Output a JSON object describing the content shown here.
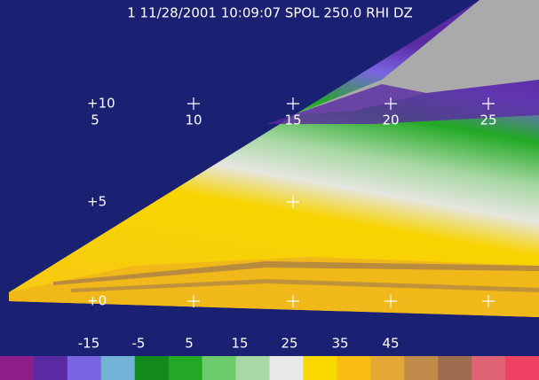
{
  "title": "1 11/28/2001 10:09:07 SPOL 250.0 RHI DZ",
  "range_labels": [
    "5",
    "10",
    "15",
    "20",
    "25"
  ],
  "height_labels": [
    "+10",
    "+5",
    "+0"
  ],
  "colorbar": {
    "labels": [
      "-15",
      "-5",
      "5",
      "15",
      "25",
      "35",
      "45"
    ],
    "colors": [
      "#8e1d8c",
      "#5a2aa2",
      "#7a64e2",
      "#72b2d6",
      "#12891a",
      "#22a824",
      "#6ccc6c",
      "#a8d8a4",
      "#e8e8e8",
      "#f9d800",
      "#f9bc12",
      "#e4a836",
      "#c08a4a",
      "#9e6a50",
      "#e06275",
      "#f04262"
    ]
  }
}
